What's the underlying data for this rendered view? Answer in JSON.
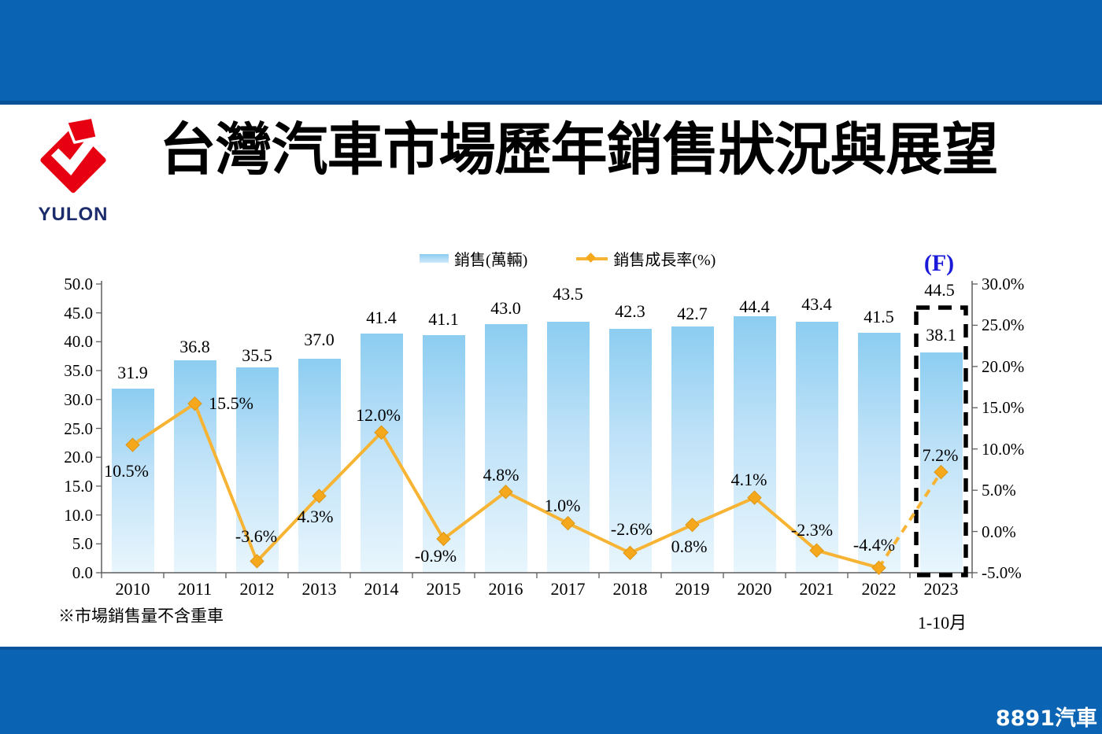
{
  "header": {
    "title": "台灣汽車市場歷年銷售狀況與展望",
    "logo_text": "YULON"
  },
  "footer": {
    "brand": "8891汽車"
  },
  "colors": {
    "band_blue": "#0A63B3",
    "bar_top": "#8CCDF1",
    "bar_bottom": "#E9F6FD",
    "line": "#F7B434",
    "marker": "#F5A81C",
    "flag_blue": "#1A1AD8",
    "logo_red": "#E60012",
    "logo_navy": "#1B2B6B",
    "axis_gray": "#5F5F5F"
  },
  "chart_data": {
    "type": "bar",
    "subtype": "combo-bar-line",
    "categories": [
      "2010",
      "2011",
      "2012",
      "2013",
      "2014",
      "2015",
      "2016",
      "2017",
      "2018",
      "2019",
      "2020",
      "2021",
      "2022",
      "2023"
    ],
    "series": [
      {
        "name": "銷售(萬輛)",
        "type": "bar",
        "axis": "left",
        "values": [
          31.9,
          36.8,
          35.5,
          37.0,
          41.4,
          41.1,
          43.0,
          43.5,
          42.3,
          42.7,
          44.4,
          43.4,
          41.5,
          38.1
        ]
      },
      {
        "name": "銷售成長率(%)",
        "type": "line",
        "axis": "right",
        "values": [
          10.5,
          15.5,
          -3.6,
          4.3,
          12.0,
          -0.9,
          4.8,
          1.0,
          -2.6,
          0.8,
          4.1,
          -2.3,
          -4.4,
          7.2
        ],
        "last_segment_dashed": true
      }
    ],
    "left_axis": {
      "min": 0,
      "max": 50,
      "step": 5,
      "labels": [
        "50.0",
        "45.0",
        "40.0",
        "35.0",
        "30.0",
        "25.0",
        "20.0",
        "15.0",
        "10.0",
        "5.0",
        "0.0"
      ]
    },
    "right_axis": {
      "min": -5,
      "max": 30,
      "step": 5,
      "labels": [
        "30.0%",
        "25.0%",
        "20.0%",
        "15.0%",
        "10.0%",
        "5.0%",
        "0.0%",
        "-5.0%"
      ]
    },
    "forecast": {
      "year": "2023",
      "bar_value": 44.5,
      "actual_value": 38.1,
      "flag": "(F)",
      "note": "1-10月",
      "boxed": true
    },
    "footnote": "※市場銷售量不含重車",
    "legend_position": "top-center",
    "grid": false
  }
}
